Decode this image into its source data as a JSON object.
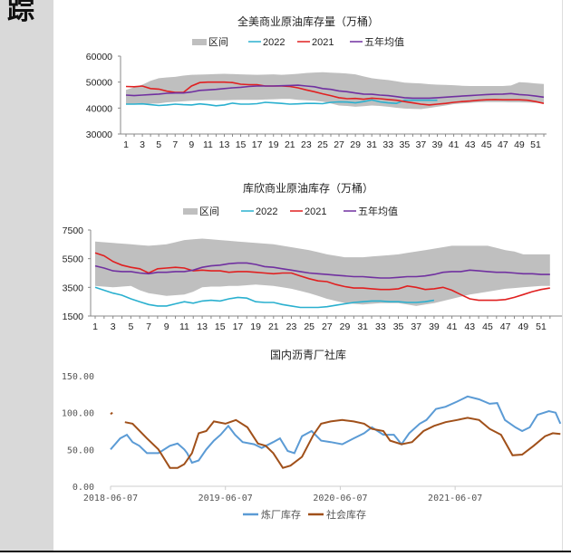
{
  "side_heading": "踪",
  "chart_data": [
    {
      "type": "area+line",
      "title": "全美商业原油库存量（万桶）",
      "legend": [
        "区间",
        "2022",
        "2021",
        "五年均值"
      ],
      "ylim": [
        30000,
        60000
      ],
      "yticks": [
        "60000",
        "50000",
        "40000",
        "30000"
      ],
      "yticks_values": [
        60000,
        50000,
        40000,
        30000
      ],
      "xticks": [
        "1",
        "3",
        "5",
        "7",
        "9",
        "11",
        "13",
        "15",
        "17",
        "19",
        "21",
        "23",
        "25",
        "27",
        "29",
        "31",
        "33",
        "35",
        "37",
        "39",
        "41",
        "43",
        "45",
        "47",
        "49",
        "51"
      ],
      "colors": {
        "band": "#bfbfbf",
        "2022": "#2ab0cf",
        "2021": "#e02020",
        "avg": "#7030a0"
      },
      "band_upper": [
        47000,
        48000,
        49000,
        50500,
        51500,
        51800,
        52000,
        52500,
        52800,
        52900,
        53000,
        53100,
        53200,
        53100,
        53000,
        52900,
        52800,
        52900,
        53000,
        52800,
        53000,
        53200,
        53500,
        53700,
        53800,
        53600,
        53500,
        53300,
        53000,
        52200,
        51500,
        51100,
        50800,
        50300,
        49800,
        49600,
        49500,
        49200,
        49000,
        48900,
        48800,
        48600,
        48500,
        48500,
        48500,
        48500,
        48500,
        48700,
        50000,
        49800,
        49500,
        49300
      ],
      "band_lower": [
        41500,
        41600,
        41700,
        41700,
        41800,
        42200,
        42400,
        42600,
        42800,
        42900,
        43000,
        43000,
        43000,
        43100,
        43200,
        43200,
        43200,
        43300,
        43400,
        43500,
        43500,
        43200,
        43000,
        42800,
        42500,
        41800,
        41000,
        40800,
        40500,
        40700,
        41000,
        40800,
        40500,
        40100,
        39800,
        39700,
        39600,
        40000,
        40500,
        41000,
        41500,
        41800,
        42000,
        42200,
        42300,
        42300,
        42300,
        42200,
        42200,
        42100,
        42000,
        42000
      ],
      "series": [
        {
          "name": "2022",
          "values": [
            41500,
            41500,
            41600,
            41300,
            41000,
            41200,
            41500,
            41300,
            41200,
            41600,
            41300,
            40900,
            41200,
            41900,
            41500,
            41500,
            41700,
            42200,
            42000,
            41800,
            41500,
            41600,
            41800,
            41800,
            41700,
            42200,
            42400,
            42300,
            42000,
            42500,
            43100,
            42400,
            42000,
            41800,
            43000,
            43000,
            43000,
            43000,
            43000
          ]
        },
        {
          "name": "2021",
          "values": [
            48300,
            48200,
            48500,
            47500,
            47300,
            46500,
            46000,
            46000,
            48500,
            49800,
            50000,
            50000,
            50000,
            49800,
            49200,
            49000,
            49000,
            48500,
            48500,
            48500,
            48300,
            47800,
            47000,
            46300,
            45500,
            44800,
            44000,
            43600,
            43700,
            43400,
            43800,
            43600,
            43300,
            43000,
            42500,
            42000,
            41500,
            41200,
            41500,
            41800,
            42200,
            42500,
            42700,
            43000,
            43200,
            43300,
            43200,
            43200,
            43200,
            43000,
            42500,
            41800
          ]
        },
        {
          "name": "五年均值",
          "values": [
            45000,
            44800,
            45000,
            45200,
            45400,
            45700,
            45800,
            45800,
            46200,
            46800,
            47000,
            47200,
            47500,
            47800,
            48000,
            48300,
            48500,
            48500,
            48500,
            48600,
            48700,
            48800,
            48500,
            48200,
            47500,
            47200,
            46600,
            46300,
            45800,
            45400,
            45300,
            45000,
            44800,
            44400,
            44000,
            43800,
            43800,
            43800,
            44000,
            44200,
            44400,
            44600,
            44800,
            45000,
            45200,
            45300,
            45400,
            45600,
            45200,
            45000,
            44600,
            44200
          ]
        }
      ]
    },
    {
      "type": "area+line",
      "title": "库欣商业原油库存（万桶）",
      "legend": [
        "区间",
        "2022",
        "2021",
        "五年均值"
      ],
      "ylim": [
        1500,
        7500
      ],
      "yticks": [
        "7500",
        "5500",
        "3500",
        "1500"
      ],
      "yticks_values": [
        7500,
        5500,
        3500,
        1500
      ],
      "xticks": [
        "1",
        "3",
        "5",
        "7",
        "9",
        "11",
        "13",
        "15",
        "17",
        "19",
        "21",
        "23",
        "25",
        "27",
        "29",
        "31",
        "33",
        "35",
        "37",
        "39",
        "41",
        "43",
        "45",
        "47",
        "49",
        "51"
      ],
      "colors": {
        "band": "#bfbfbf",
        "2022": "#2ab0cf",
        "2021": "#e02020",
        "avg": "#7030a0"
      },
      "band_upper": [
        6700,
        6650,
        6600,
        6550,
        6500,
        6450,
        6400,
        6450,
        6500,
        6650,
        6800,
        6850,
        6900,
        6850,
        6800,
        6750,
        6700,
        6650,
        6600,
        6550,
        6500,
        6400,
        6300,
        6200,
        6100,
        5950,
        5800,
        5700,
        5600,
        5600,
        5600,
        5650,
        5700,
        5750,
        5800,
        5900,
        6000,
        6100,
        6200,
        6300,
        6400,
        6400,
        6400,
        6400,
        6400,
        6250,
        6100,
        6000,
        5800,
        5800,
        5800,
        5800
      ],
      "band_lower": [
        3600,
        3550,
        3500,
        3550,
        3600,
        3300,
        3100,
        3000,
        2900,
        2950,
        3000,
        3200,
        3500,
        3550,
        3550,
        3600,
        3600,
        3650,
        3700,
        3650,
        3600,
        3500,
        3400,
        3250,
        3100,
        2900,
        2700,
        2550,
        2400,
        2350,
        2300,
        2350,
        2400,
        2400,
        2400,
        2300,
        2200,
        2300,
        2400,
        2550,
        2700,
        2850,
        3000,
        3100,
        3200,
        3300,
        3400,
        3450,
        3500,
        3550,
        3600,
        3600
      ],
      "series": [
        {
          "name": "2022",
          "values": [
            3500,
            3300,
            3100,
            2950,
            2700,
            2500,
            2300,
            2200,
            2200,
            2350,
            2500,
            2400,
            2550,
            2600,
            2550,
            2700,
            2800,
            2750,
            2500,
            2450,
            2450,
            2300,
            2200,
            2100,
            2100,
            2100,
            2150,
            2250,
            2350,
            2450,
            2500,
            2550,
            2550,
            2500,
            2500,
            2450,
            2450,
            2500,
            2600
          ]
        },
        {
          "name": "2021",
          "values": [
            5900,
            5700,
            5300,
            5050,
            4900,
            4800,
            4500,
            4800,
            4850,
            4900,
            4850,
            4650,
            4700,
            4650,
            4650,
            4550,
            4600,
            4600,
            4550,
            4500,
            4450,
            4500,
            4500,
            4300,
            4100,
            3950,
            3900,
            3700,
            3550,
            3450,
            3450,
            3400,
            3350,
            3350,
            3400,
            3600,
            3500,
            3350,
            3400,
            3500,
            3300,
            3000,
            2700,
            2600,
            2600,
            2600,
            2650,
            2800,
            3000,
            3200,
            3350,
            3450
          ]
        },
        {
          "name": "五年均值",
          "values": [
            5000,
            4850,
            4650,
            4600,
            4600,
            4500,
            4450,
            4550,
            4550,
            4600,
            4600,
            4700,
            4900,
            5000,
            5050,
            5150,
            5200,
            5200,
            5100,
            4950,
            4900,
            4800,
            4700,
            4600,
            4500,
            4450,
            4400,
            4350,
            4300,
            4250,
            4250,
            4200,
            4150,
            4150,
            4200,
            4250,
            4250,
            4300,
            4400,
            4550,
            4600,
            4600,
            4700,
            4650,
            4600,
            4550,
            4550,
            4500,
            4450,
            4450,
            4400,
            4400
          ]
        }
      ]
    },
    {
      "type": "line",
      "title": "国内沥青厂社库",
      "legend": [
        "炼厂库存",
        "社会库存"
      ],
      "ylim": [
        0,
        150
      ],
      "yticks": [
        "150.00",
        "100.00",
        "50.00",
        "0.00"
      ],
      "yticks_values": [
        150,
        100,
        50,
        0
      ],
      "xticks": [
        "2018-06-07",
        "2019-06-07",
        "2020-06-07",
        "2021-06-07"
      ],
      "xticks_months": [
        0,
        12,
        24,
        36
      ],
      "x_unit": "months since 2018-06-07",
      "colors": {
        "炼厂库存": "#5b9bd5",
        "社会库存": "#a0501a"
      },
      "series": [
        {
          "name": "炼厂库存",
          "x": [
            0,
            1,
            1.7,
            2.3,
            3,
            3.8,
            5,
            6.2,
            7,
            7.7,
            8,
            8.5,
            9.2,
            10,
            10.8,
            11.5,
            12.3,
            13,
            13.8,
            15,
            15.8,
            17,
            17.7,
            18.5,
            19.2,
            20,
            21,
            22,
            23,
            24.2,
            25.4,
            26.5,
            27.3,
            28.5,
            29.6,
            30.4,
            31.2,
            32.3,
            33,
            34,
            35,
            36.2,
            37.3,
            38.5,
            39.6,
            40.4,
            41.2,
            42.3,
            43,
            43.8,
            44.6,
            45.8,
            46.5,
            47
          ],
          "values": [
            50,
            65,
            70,
            60,
            55,
            45,
            45,
            55,
            58,
            50,
            45,
            32,
            35,
            50,
            62,
            70,
            82,
            70,
            60,
            57,
            52,
            60,
            65,
            48,
            45,
            68,
            75,
            62,
            60,
            57,
            65,
            72,
            80,
            70,
            70,
            57,
            72,
            85,
            90,
            105,
            108,
            115,
            122,
            118,
            112,
            113,
            90,
            80,
            75,
            80,
            97,
            102,
            100,
            85
          ]
        },
        {
          "name": "社会库存",
          "x": [
            0,
            0.2,
            1.5,
            2.3,
            3.8,
            5,
            6.2,
            7,
            7.7,
            8.5,
            9.2,
            10,
            10.8,
            12,
            13.1,
            14.3,
            15.4,
            16.2,
            17,
            18,
            18.8,
            20,
            21.2,
            22,
            23,
            24.2,
            25.4,
            26.5,
            27.3,
            28.5,
            29.2,
            30.4,
            31.5,
            32.7,
            33.8,
            35,
            36.2,
            37.3,
            38.5,
            39.6,
            40.8,
            42,
            43,
            44.2,
            45.4,
            46.2,
            47
          ],
          "values": [
            98,
            100,
            87,
            85,
            65,
            50,
            25,
            25,
            30,
            45,
            72,
            75,
            88,
            85,
            90,
            80,
            58,
            55,
            45,
            25,
            28,
            40,
            70,
            85,
            88,
            90,
            88,
            85,
            78,
            75,
            62,
            57,
            60,
            75,
            82,
            87,
            90,
            93,
            90,
            78,
            70,
            42,
            43,
            55,
            68,
            72,
            71
          ]
        }
      ]
    }
  ]
}
